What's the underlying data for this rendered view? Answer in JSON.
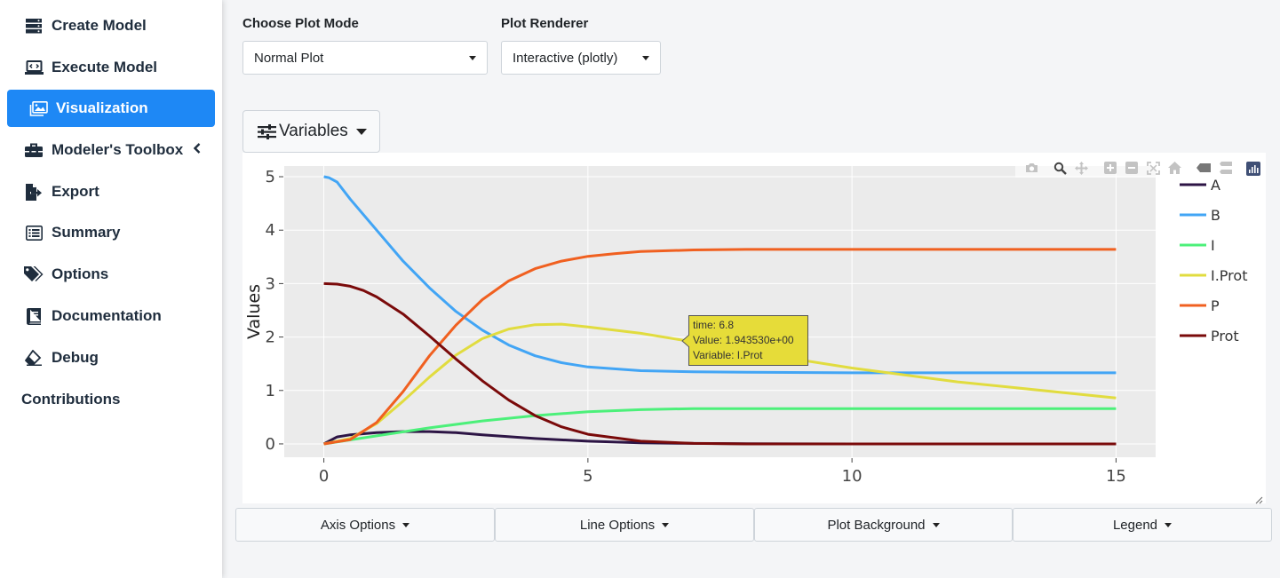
{
  "sidebar": {
    "items": [
      {
        "label": "Create Model",
        "icon": "server-icon"
      },
      {
        "label": "Execute Model",
        "icon": "laptop-code-icon"
      },
      {
        "label": "Visualization",
        "icon": "image-icon"
      },
      {
        "label": "Modeler's Toolbox",
        "icon": "toolbox-icon"
      },
      {
        "label": "Export",
        "icon": "file-export-icon"
      },
      {
        "label": "Summary",
        "icon": "list-icon"
      },
      {
        "label": "Options",
        "icon": "tags-icon"
      },
      {
        "label": "Documentation",
        "icon": "book-icon"
      },
      {
        "label": "Debug",
        "icon": "eraser-icon"
      }
    ],
    "contributions": "Contributions"
  },
  "controls": {
    "plot_mode_label": "Choose Plot Mode",
    "plot_mode_value": "Normal Plot",
    "renderer_label": "Plot Renderer",
    "renderer_value": "Interactive (plotly)",
    "variables_button": "Variables"
  },
  "options": {
    "axis": "Axis Options",
    "line": "Line Options",
    "background": "Plot Background",
    "legend": "Legend"
  },
  "modebar_icons": [
    "camera-icon",
    "zoom-icon",
    "pan-icon",
    "zoom-in-icon",
    "zoom-out-icon",
    "autoscale-icon",
    "home-icon",
    "hover-closest-icon",
    "hover-compare-icon",
    "plotly-logo-icon"
  ],
  "tooltip": {
    "time": "time:  6.8",
    "value": "Value:  1.943530e+00",
    "variable": "Variable:  I.Prot"
  },
  "chart_data": {
    "type": "line",
    "ylabel": "Values",
    "xlabel": "",
    "xlim": [
      -0.75,
      15.75
    ],
    "ylim": [
      -0.25,
      5.2
    ],
    "x_ticks": [
      0,
      5,
      10,
      15
    ],
    "y_ticks": [
      0,
      1,
      2,
      3,
      4,
      5
    ],
    "grid": true,
    "legend_position": "right",
    "series": [
      {
        "name": "A",
        "color": "#2d1545",
        "x": [
          0,
          0.25,
          0.5,
          1,
          1.5,
          2,
          2.5,
          3,
          4,
          5,
          6,
          7,
          8,
          10,
          12,
          15
        ],
        "y": [
          0,
          0.13,
          0.17,
          0.21,
          0.23,
          0.23,
          0.21,
          0.17,
          0.1,
          0.05,
          0.02,
          0.01,
          0.005,
          0,
          0,
          0
        ]
      },
      {
        "name": "B",
        "color": "#42a5f5",
        "x": [
          0,
          0.1,
          0.25,
          0.5,
          1,
          1.5,
          2,
          2.5,
          3,
          3.5,
          4,
          4.5,
          5,
          6,
          7,
          8,
          10,
          12,
          15
        ],
        "y": [
          5,
          4.98,
          4.9,
          4.58,
          4.0,
          3.42,
          2.92,
          2.48,
          2.13,
          1.85,
          1.65,
          1.52,
          1.44,
          1.37,
          1.35,
          1.34,
          1.33,
          1.33,
          1.33
        ]
      },
      {
        "name": "I",
        "color": "#4cf07a",
        "x": [
          0,
          1,
          2,
          3,
          4,
          5,
          6,
          7,
          8,
          10,
          12,
          15
        ],
        "y": [
          0,
          0.15,
          0.3,
          0.43,
          0.53,
          0.6,
          0.64,
          0.66,
          0.66,
          0.66,
          0.66,
          0.66
        ]
      },
      {
        "name": "I.Prot",
        "color": "#e1dc3f",
        "x": [
          0,
          0.5,
          1,
          1.5,
          2,
          2.5,
          3,
          3.5,
          4,
          4.5,
          5,
          6,
          6.8,
          8,
          10,
          12,
          15
        ],
        "y": [
          0,
          0.1,
          0.38,
          0.8,
          1.25,
          1.66,
          1.97,
          2.15,
          2.23,
          2.24,
          2.19,
          2.07,
          1.94,
          1.73,
          1.42,
          1.16,
          0.86
        ]
      },
      {
        "name": "P",
        "color": "#f06020",
        "x": [
          0,
          0.5,
          1,
          1.5,
          2,
          2.5,
          3,
          3.5,
          4,
          4.5,
          5,
          5.5,
          6,
          7,
          8,
          10,
          12,
          15
        ],
        "y": [
          0,
          0.08,
          0.4,
          0.98,
          1.65,
          2.22,
          2.7,
          3.05,
          3.28,
          3.42,
          3.51,
          3.56,
          3.6,
          3.63,
          3.64,
          3.64,
          3.64,
          3.64
        ]
      },
      {
        "name": "Prot",
        "color": "#7a0a0a",
        "x": [
          0,
          0.25,
          0.5,
          0.75,
          1,
          1.5,
          2,
          2.5,
          3,
          3.5,
          4,
          4.5,
          5,
          6,
          7,
          8,
          10,
          15
        ],
        "y": [
          3,
          2.99,
          2.95,
          2.87,
          2.75,
          2.43,
          2.02,
          1.59,
          1.18,
          0.82,
          0.53,
          0.32,
          0.18,
          0.05,
          0.01,
          0,
          0,
          0
        ]
      }
    ]
  }
}
